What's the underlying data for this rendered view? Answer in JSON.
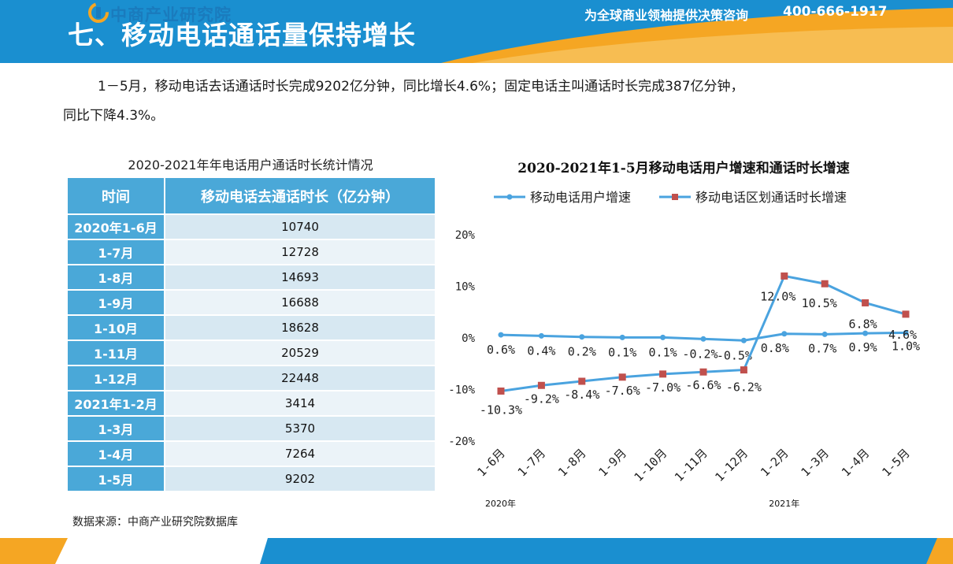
{
  "header": {
    "title": "七、移动电话通话量保持增长"
  },
  "intro": {
    "line1": "1－5月，移动电话去话通话时长完成9202亿分钟，同比增长4.6%；固定电话主叫通话时长完成387亿分钟，",
    "line2": "同比下降4.3%。"
  },
  "table": {
    "title": "2020-2021年年电话用户通话时长统计情况",
    "headers": [
      "时间",
      "移动电话去通话时长（亿分钟）"
    ],
    "rows": [
      {
        "time": "2020年1-6月",
        "value": "10740"
      },
      {
        "time": "1-7月",
        "value": "12728"
      },
      {
        "time": "1-8月",
        "value": "14693"
      },
      {
        "time": "1-9月",
        "value": "16688"
      },
      {
        "time": "1-10月",
        "value": "18628"
      },
      {
        "time": "1-11月",
        "value": "20529"
      },
      {
        "time": "1-12月",
        "value": "22448"
      },
      {
        "time": "2021年1-2月",
        "value": "3414"
      },
      {
        "time": "1-3月",
        "value": "5370"
      },
      {
        "time": "1-4月",
        "value": "7264"
      },
      {
        "time": "1-5月",
        "value": "9202"
      }
    ]
  },
  "source": "数据来源：中商产业研究院数据库",
  "chart_data": {
    "type": "line",
    "title": "2020-2021年1-5月移动电话用户增速和通话时长增速",
    "categories": [
      "1-6月",
      "1-7月",
      "1-8月",
      "1-9月",
      "1-10月",
      "1-11月",
      "1-12月",
      "1-2月",
      "1-3月",
      "1-4月",
      "1-5月"
    ],
    "year_labels": [
      {
        "label": "2020年",
        "start_index": 0
      },
      {
        "label": "2021年",
        "start_index": 7
      }
    ],
    "series": [
      {
        "name": "移动电话用户增速",
        "values": [
          0.6,
          0.4,
          0.2,
          0.1,
          0.1,
          -0.2,
          -0.5,
          0.8,
          0.7,
          0.9,
          1.0
        ],
        "labels": [
          "0.6%",
          "0.4%",
          "0.2%",
          "0.1%",
          "0.1%",
          "-0.2%",
          "-0.5%",
          "0.8%",
          "0.7%",
          "0.9%",
          "1.0%"
        ],
        "color": "#4aa3df",
        "marker": "circle"
      },
      {
        "name": "移动电话区划通话时长增速",
        "values": [
          -10.3,
          -9.2,
          -8.4,
          -7.6,
          -7.0,
          -6.6,
          -6.2,
          12.0,
          10.5,
          6.8,
          4.6
        ],
        "labels": [
          "-10.3%",
          "-9.2%",
          "-8.4%",
          "-7.6%",
          "-7.0%",
          "-6.6%",
          "-6.2%",
          "12.0%",
          "10.5%",
          "6.8%",
          "4.6%"
        ],
        "color": "#4aa3df",
        "marker_color": "#c0504d",
        "marker": "square"
      }
    ],
    "y_ticks": [
      "20%",
      "10%",
      "0%",
      "-10%",
      "-20%"
    ],
    "ylim": [
      -20,
      20
    ],
    "legend": "top",
    "grid": false
  },
  "footer": {
    "logo": "中商产业研究院",
    "slogan": "为全球商业领袖提供决策咨询",
    "phone": "400-666-1917"
  },
  "colors": {
    "primary_blue": "#1a8fd0",
    "orange": "#f5a623",
    "table_header": "#4aa8d8",
    "line": "#4aa3df",
    "square_marker": "#c0504d"
  }
}
